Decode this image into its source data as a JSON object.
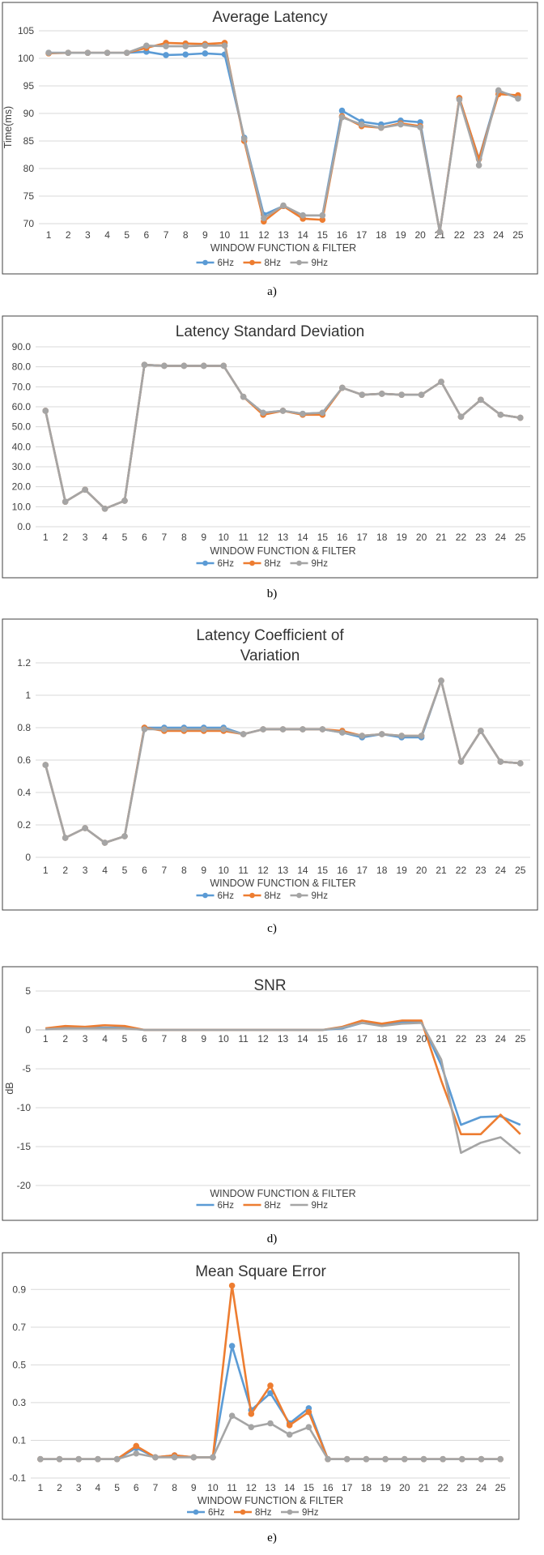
{
  "colors": {
    "6Hz": "#5B9BD5",
    "8Hz": "#ED7D31",
    "9Hz": "#A5A5A5",
    "grid": "#D9D9D9",
    "frame": "#404040"
  },
  "chart_data": [
    {
      "type": "line",
      "title": "Average Latency",
      "xlabel": "WINDOW FUNCTION & FILTER",
      "ylabel": "Time(ms)",
      "ylim": [
        70,
        105
      ],
      "yticks": [
        "70",
        "75",
        "80",
        "85",
        "90",
        "95",
        "100",
        "105"
      ],
      "categories": [
        "1",
        "2",
        "3",
        "4",
        "5",
        "6",
        "7",
        "8",
        "9",
        "10",
        "11",
        "12",
        "13",
        "14",
        "15",
        "16",
        "17",
        "18",
        "19",
        "20",
        "21",
        "22",
        "23",
        "24",
        "25"
      ],
      "markers": true,
      "caption": "a)",
      "series": [
        {
          "name": "6Hz",
          "values": [
            101,
            101,
            101,
            101,
            101,
            101.2,
            100.6,
            100.7,
            100.9,
            100.7,
            85.6,
            71.6,
            73.2,
            71.5,
            71.5,
            90.5,
            88.5,
            88.0,
            88.7,
            88.4,
            68.5,
            92.7,
            81.8,
            94.0,
            93.0
          ]
        },
        {
          "name": "8Hz",
          "values": [
            100.9,
            101,
            101,
            101,
            101,
            101.9,
            102.8,
            102.7,
            102.6,
            102.8,
            85.0,
            70.4,
            73.2,
            70.9,
            70.7,
            89.5,
            87.7,
            87.4,
            88.2,
            87.7,
            68.5,
            92.8,
            81.7,
            93.5,
            93.3
          ]
        },
        {
          "name": "9Hz",
          "values": [
            101,
            101,
            101,
            101,
            101,
            102.3,
            102.2,
            102.2,
            102.3,
            102.3,
            85.4,
            71.0,
            73.3,
            71.5,
            71.5,
            89.3,
            88.0,
            87.4,
            88.0,
            87.5,
            68.5,
            92.5,
            80.6,
            94.2,
            92.7
          ]
        }
      ]
    },
    {
      "type": "line",
      "title": "Latency Standard Deviation",
      "xlabel": "WINDOW FUNCTION & FILTER",
      "ylabel": "",
      "ylim": [
        0,
        90
      ],
      "yticks": [
        "0.0",
        "10.0",
        "20.0",
        "30.0",
        "40.0",
        "50.0",
        "60.0",
        "70.0",
        "80.0",
        "90.0"
      ],
      "categories": [
        "1",
        "2",
        "3",
        "4",
        "5",
        "6",
        "7",
        "8",
        "9",
        "10",
        "11",
        "12",
        "13",
        "14",
        "15",
        "16",
        "17",
        "18",
        "19",
        "20",
        "21",
        "22",
        "23",
        "24",
        "25"
      ],
      "markers": true,
      "caption": "b)",
      "series": [
        {
          "name": "6Hz",
          "values": [
            58,
            12.5,
            18.5,
            9,
            13,
            81,
            80.5,
            80.5,
            80.5,
            80.5,
            65,
            57,
            58,
            56.5,
            57,
            69.5,
            66,
            66.5,
            66,
            66,
            72.5,
            55,
            63.5,
            56,
            54.5
          ]
        },
        {
          "name": "8Hz",
          "values": [
            58,
            12.5,
            18.5,
            9,
            13,
            81,
            80.5,
            80.5,
            80.5,
            80.5,
            65,
            56,
            58,
            56,
            56,
            69.5,
            66,
            66.5,
            66,
            66,
            72.5,
            55,
            63.5,
            56,
            54.5
          ]
        },
        {
          "name": "9Hz",
          "values": [
            58,
            12.5,
            18.5,
            9,
            13,
            81,
            80.5,
            80.5,
            80.5,
            80.5,
            65,
            57,
            58,
            56.5,
            57,
            69.5,
            66,
            66.5,
            66,
            66,
            72.5,
            55,
            63.5,
            56,
            54.5
          ]
        }
      ]
    },
    {
      "type": "line",
      "title": "Latency Coefficient of Variation",
      "xlabel": "WINDOW FUNCTION & FILTER",
      "ylabel": "",
      "ylim": [
        0,
        1.2
      ],
      "yticks": [
        "0",
        "0.2",
        "0.4",
        "0.6",
        "0.8",
        "1",
        "1.2"
      ],
      "categories": [
        "1",
        "2",
        "3",
        "4",
        "5",
        "6",
        "7",
        "8",
        "9",
        "10",
        "11",
        "12",
        "13",
        "14",
        "15",
        "16",
        "17",
        "18",
        "19",
        "20",
        "21",
        "22",
        "23",
        "24",
        "25"
      ],
      "markers": true,
      "caption": "c)",
      "series": [
        {
          "name": "6Hz",
          "values": [
            0.57,
            0.12,
            0.18,
            0.09,
            0.13,
            0.8,
            0.8,
            0.8,
            0.8,
            0.8,
            0.76,
            0.79,
            0.79,
            0.79,
            0.79,
            0.77,
            0.74,
            0.76,
            0.74,
            0.74,
            1.09,
            0.59,
            0.78,
            0.59,
            0.58
          ]
        },
        {
          "name": "8Hz",
          "values": [
            0.57,
            0.12,
            0.18,
            0.09,
            0.13,
            0.8,
            0.78,
            0.78,
            0.78,
            0.78,
            0.76,
            0.79,
            0.79,
            0.79,
            0.79,
            0.78,
            0.75,
            0.76,
            0.75,
            0.75,
            1.09,
            0.59,
            0.78,
            0.59,
            0.58
          ]
        },
        {
          "name": "9Hz",
          "values": [
            0.57,
            0.12,
            0.18,
            0.09,
            0.13,
            0.79,
            0.79,
            0.79,
            0.79,
            0.79,
            0.76,
            0.79,
            0.79,
            0.79,
            0.79,
            0.77,
            0.75,
            0.76,
            0.75,
            0.75,
            1.09,
            0.59,
            0.78,
            0.59,
            0.58
          ]
        }
      ]
    },
    {
      "type": "line",
      "title": "SNR",
      "xlabel": "WINDOW FUNCTION & FILTER",
      "ylabel": "dB",
      "ylim": [
        -20,
        5
      ],
      "yticks": [
        "-20",
        "-15",
        "-10",
        "-5",
        "0",
        "5"
      ],
      "categories": [
        "1",
        "2",
        "3",
        "4",
        "5",
        "6",
        "7",
        "8",
        "9",
        "10",
        "11",
        "12",
        "13",
        "14",
        "15",
        "16",
        "17",
        "18",
        "19",
        "20",
        "21",
        "22",
        "23",
        "24",
        "25"
      ],
      "markers": false,
      "caption": "d)",
      "series": [
        {
          "name": "6Hz",
          "values": [
            0.1,
            0.3,
            0.3,
            0.3,
            0.3,
            0,
            0,
            0,
            0,
            0,
            0,
            0,
            0,
            0,
            0,
            0.2,
            0.9,
            0.7,
            1.0,
            1.0,
            -4.5,
            -12.2,
            -11.2,
            -11.1,
            -12.2
          ]
        },
        {
          "name": "8Hz",
          "values": [
            0.2,
            0.5,
            0.4,
            0.6,
            0.5,
            0,
            0,
            0,
            0,
            0,
            0,
            0,
            0,
            0,
            0,
            0.4,
            1.2,
            0.8,
            1.2,
            1.2,
            -6.5,
            -13.4,
            -13.4,
            -10.9,
            -13.4
          ]
        },
        {
          "name": "9Hz",
          "values": [
            0.1,
            0.2,
            0.2,
            0.2,
            0.2,
            0,
            0,
            0,
            0,
            0,
            0,
            0,
            0,
            0,
            0,
            0.3,
            0.9,
            0.5,
            0.8,
            0.9,
            -3.8,
            -15.8,
            -14.5,
            -13.8,
            -15.9
          ]
        }
      ]
    },
    {
      "type": "line",
      "title": "Mean Square Error",
      "xlabel": "WINDOW FUNCTION & FILTER",
      "ylabel": "",
      "ylim": [
        -0.1,
        1.0
      ],
      "yticks": [
        "-0.1",
        "0.1",
        "0.3",
        "0.5",
        "0.7",
        "0.9"
      ],
      "yticks_at": [
        -0.1,
        0.1,
        0.3,
        0.5,
        0.7,
        0.9
      ],
      "categories": [
        "1",
        "2",
        "3",
        "4",
        "5",
        "6",
        "7",
        "8",
        "9",
        "10",
        "11",
        "12",
        "13",
        "14",
        "15",
        "16",
        "17",
        "18",
        "19",
        "20",
        "21",
        "22",
        "23",
        "24",
        "25"
      ],
      "markers": true,
      "caption": "e)",
      "series": [
        {
          "name": "6Hz",
          "values": [
            0,
            0,
            0,
            0,
            0,
            0.06,
            0.01,
            0.02,
            0.01,
            0.01,
            0.6,
            0.26,
            0.35,
            0.19,
            0.27,
            0,
            0,
            0,
            0,
            0,
            0,
            0,
            0,
            0,
            0
          ]
        },
        {
          "name": "8Hz",
          "values": [
            0,
            0,
            0,
            0,
            0,
            0.07,
            0.01,
            0.02,
            0.01,
            0.01,
            0.92,
            0.24,
            0.39,
            0.18,
            0.25,
            0,
            0,
            0,
            0,
            0,
            0,
            0,
            0,
            0,
            0
          ]
        },
        {
          "name": "9Hz",
          "values": [
            0,
            0,
            0,
            0,
            0,
            0.03,
            0.01,
            0.01,
            0.01,
            0.01,
            0.23,
            0.17,
            0.19,
            0.13,
            0.17,
            0,
            0,
            0,
            0,
            0,
            0,
            0,
            0,
            0,
            0
          ]
        }
      ]
    }
  ]
}
